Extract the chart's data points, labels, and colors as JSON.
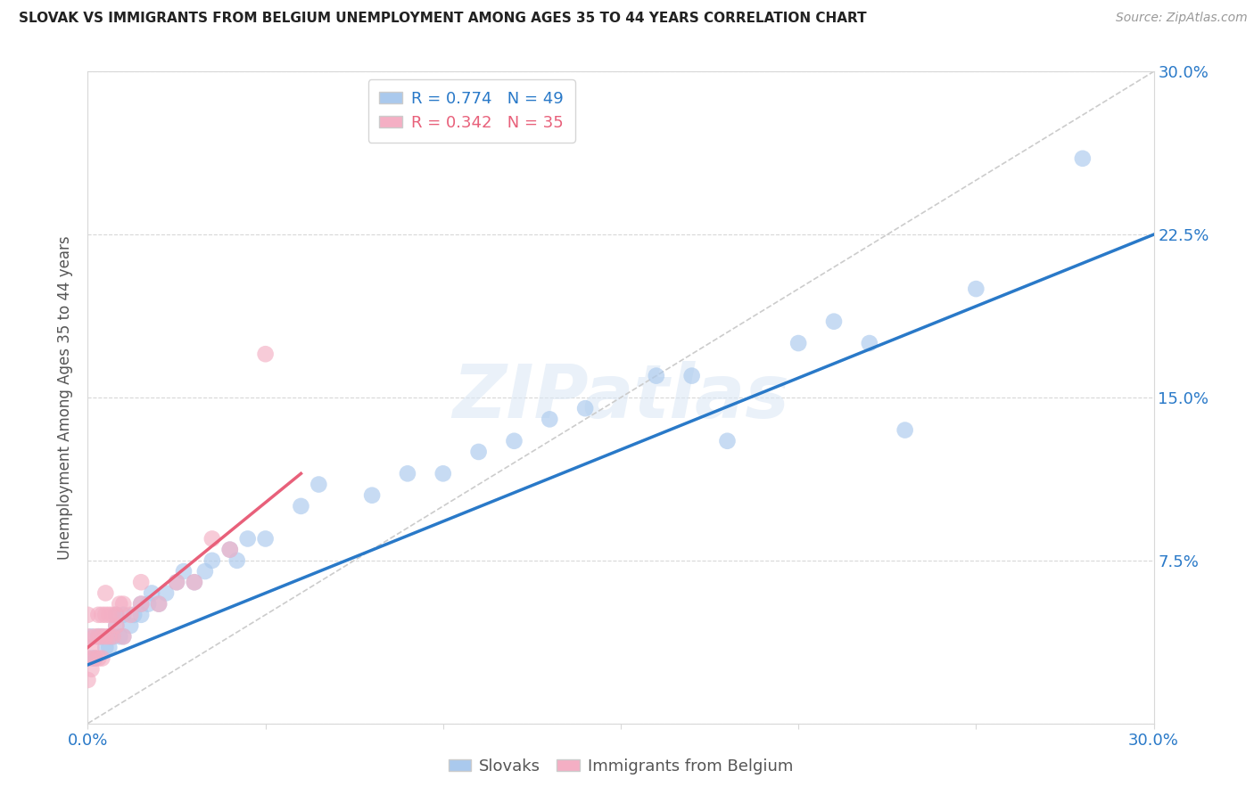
{
  "title": "SLOVAK VS IMMIGRANTS FROM BELGIUM UNEMPLOYMENT AMONG AGES 35 TO 44 YEARS CORRELATION CHART",
  "source": "Source: ZipAtlas.com",
  "ylabel": "Unemployment Among Ages 35 to 44 years",
  "xmin": 0.0,
  "xmax": 0.3,
  "ymin": 0.0,
  "ymax": 0.3,
  "watermark": "ZIPatlas",
  "legend_r1": "R = 0.774",
  "legend_n1": "N = 49",
  "legend_r2": "R = 0.342",
  "legend_n2": "N = 35",
  "blue_color": "#aac9ed",
  "pink_color": "#f4afc4",
  "blue_line_color": "#2979c8",
  "pink_line_color": "#e8607a",
  "diag_line_color": "#cccccc",
  "slovaks_x": [
    0.001,
    0.001,
    0.002,
    0.003,
    0.004,
    0.005,
    0.006,
    0.006,
    0.007,
    0.008,
    0.008,
    0.009,
    0.01,
    0.01,
    0.012,
    0.013,
    0.015,
    0.015,
    0.017,
    0.018,
    0.02,
    0.022,
    0.025,
    0.027,
    0.03,
    0.033,
    0.035,
    0.04,
    0.042,
    0.045,
    0.05,
    0.06,
    0.065,
    0.08,
    0.09,
    0.1,
    0.11,
    0.12,
    0.13,
    0.14,
    0.16,
    0.17,
    0.18,
    0.2,
    0.21,
    0.22,
    0.23,
    0.25,
    0.28
  ],
  "slovaks_y": [
    0.03,
    0.04,
    0.03,
    0.04,
    0.04,
    0.035,
    0.035,
    0.04,
    0.04,
    0.045,
    0.05,
    0.04,
    0.04,
    0.05,
    0.045,
    0.05,
    0.05,
    0.055,
    0.055,
    0.06,
    0.055,
    0.06,
    0.065,
    0.07,
    0.065,
    0.07,
    0.075,
    0.08,
    0.075,
    0.085,
    0.085,
    0.1,
    0.11,
    0.105,
    0.115,
    0.115,
    0.125,
    0.13,
    0.14,
    0.145,
    0.16,
    0.16,
    0.13,
    0.175,
    0.185,
    0.175,
    0.135,
    0.2,
    0.26
  ],
  "belgium_x": [
    0.0,
    0.0,
    0.0,
    0.0,
    0.001,
    0.001,
    0.002,
    0.002,
    0.003,
    0.003,
    0.003,
    0.004,
    0.004,
    0.004,
    0.005,
    0.005,
    0.005,
    0.006,
    0.006,
    0.007,
    0.007,
    0.008,
    0.008,
    0.009,
    0.01,
    0.01,
    0.012,
    0.015,
    0.015,
    0.02,
    0.025,
    0.03,
    0.035,
    0.04,
    0.05
  ],
  "belgium_y": [
    0.02,
    0.03,
    0.04,
    0.05,
    0.025,
    0.035,
    0.03,
    0.04,
    0.03,
    0.04,
    0.05,
    0.03,
    0.04,
    0.05,
    0.04,
    0.05,
    0.06,
    0.04,
    0.05,
    0.04,
    0.05,
    0.045,
    0.05,
    0.055,
    0.04,
    0.055,
    0.05,
    0.055,
    0.065,
    0.055,
    0.065,
    0.065,
    0.085,
    0.08,
    0.17
  ],
  "blue_line_x0": 0.0,
  "blue_line_y0": 0.027,
  "blue_line_x1": 0.3,
  "blue_line_y1": 0.225,
  "pink_line_x0": 0.0,
  "pink_line_y0": 0.035,
  "pink_line_x1": 0.06,
  "pink_line_y1": 0.115
}
